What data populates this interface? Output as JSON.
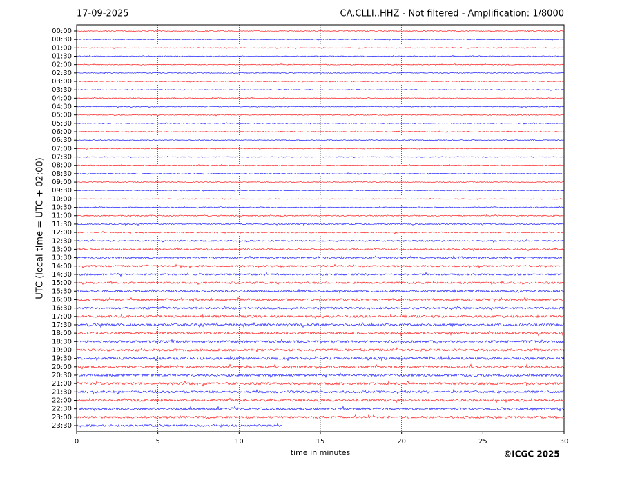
{
  "chart_data": {
    "type": "helicorder",
    "date": "17-09-2025",
    "title": "CA.CLLI..HHZ - Not filtered - Amplification: 1/8000",
    "ylabel": "UTC (local time = UTC + 02:00)",
    "xlabel": "time in minutes",
    "copyright": "©ICGC 2025",
    "categories": [
      "00:00",
      "00:30",
      "01:00",
      "01:30",
      "02:00",
      "02:30",
      "03:00",
      "03:30",
      "04:00",
      "04:30",
      "05:00",
      "05:30",
      "06:00",
      "06:30",
      "07:00",
      "07:30",
      "08:00",
      "08:30",
      "09:00",
      "09:30",
      "10:00",
      "10:30",
      "11:00",
      "11:30",
      "12:00",
      "12:30",
      "13:00",
      "13:30",
      "14:00",
      "14:30",
      "15:00",
      "15:30",
      "16:00",
      "16:30",
      "17:00",
      "17:30",
      "18:00",
      "18:30",
      "19:00",
      "19:30",
      "20:00",
      "20:30",
      "21:00",
      "21:30",
      "22:00",
      "22:30",
      "23:00",
      "23:30"
    ],
    "values": [
      30,
      30,
      30,
      30,
      30,
      30,
      30,
      30,
      30,
      30,
      30,
      30,
      30,
      30,
      30,
      30,
      30,
      30,
      30,
      30,
      30,
      30,
      30,
      30,
      30,
      30,
      30,
      30,
      30,
      30,
      30,
      30,
      30,
      30,
      30,
      30,
      30,
      30,
      30,
      30,
      30,
      30,
      30,
      30,
      30,
      30,
      30,
      12.7
    ],
    "colors": [
      "#ff0000",
      "#0000ff"
    ],
    "xlim": [
      0,
      30
    ],
    "xticks": [
      0,
      5,
      10,
      15,
      20,
      25,
      30
    ],
    "grid": true
  }
}
